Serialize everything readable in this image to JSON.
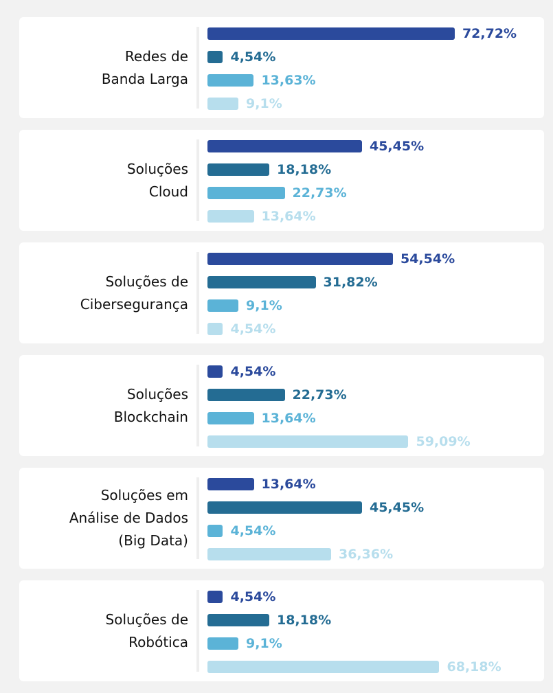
{
  "chart_data": {
    "type": "bar",
    "orientation": "horizontal",
    "categories": [
      "Redes de\nBanda Larga",
      "Soluções\nCloud",
      "Soluções de\nCibersegurança",
      "Soluções\nBlockchain",
      "Soluções em\nAnálise de Dados\n(Big Data)",
      "Soluções de\nRobótica"
    ],
    "series": [
      {
        "color": "#2b4a9c",
        "values": [
          72.72,
          45.45,
          54.54,
          4.54,
          13.64,
          4.54
        ],
        "value_labels": [
          "72,72%",
          "45,45%",
          "54,54%",
          "4,54%",
          "13,64%",
          "4,54%"
        ]
      },
      {
        "color": "#246c93",
        "values": [
          4.54,
          18.18,
          31.82,
          22.73,
          45.45,
          18.18
        ],
        "value_labels": [
          "4,54%",
          "18,18%",
          "31,82%",
          "22,73%",
          "45,45%",
          "18,18%"
        ]
      },
      {
        "color": "#5bb3d7",
        "values": [
          13.63,
          22.73,
          9.1,
          13.64,
          4.54,
          9.1
        ],
        "value_labels": [
          "13,63%",
          "22,73%",
          "9,1%",
          "13,64%",
          "4,54%",
          "9,1%"
        ]
      },
      {
        "color": "#b7deed",
        "values": [
          9.1,
          13.64,
          4.54,
          59.09,
          36.36,
          68.18
        ],
        "value_labels": [
          "9,1%",
          "13,64%",
          "4,54%",
          "59,09%",
          "36,36%",
          "68,18%"
        ]
      }
    ]
  }
}
